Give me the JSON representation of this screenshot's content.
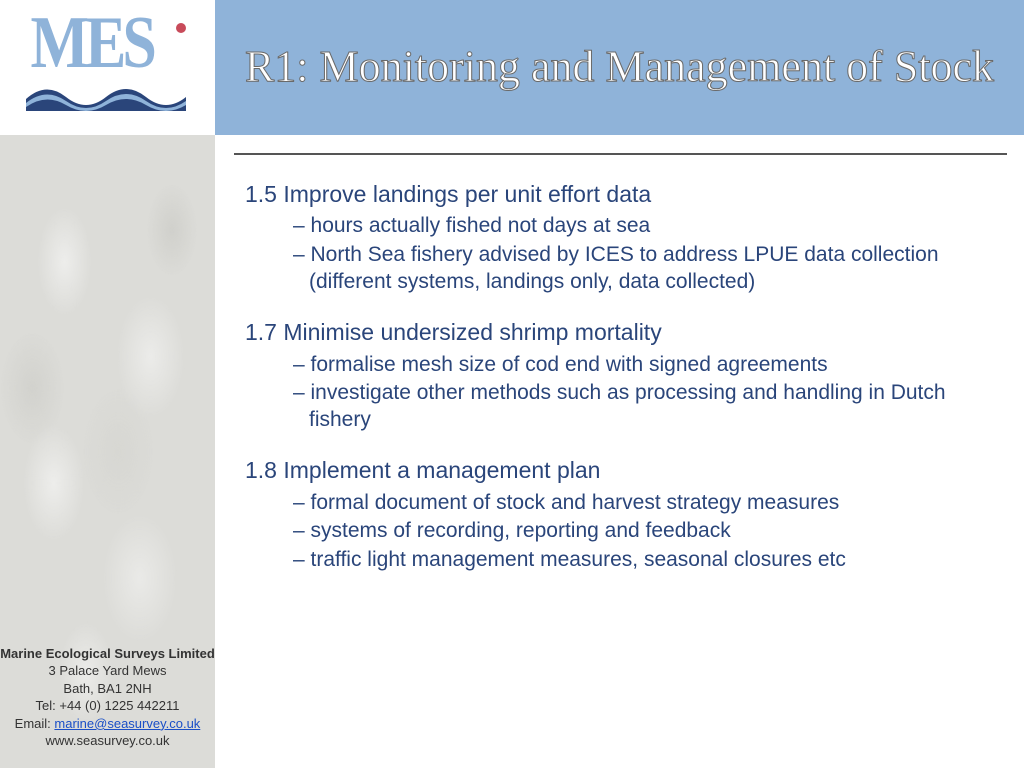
{
  "colors": {
    "header_bg": "#8fb3d9",
    "title_text": "#ffffff",
    "title_stroke": "#6a6a6a",
    "body_text": "#2a457a",
    "link": "#1a4fc7",
    "logo_text": "#8fb3d9",
    "logo_dot": "#c84b5a",
    "logo_wave": "#2a457a",
    "hr": "#555555",
    "shrimp_bg": "#dcdcd8"
  },
  "logo": {
    "text": "MES"
  },
  "title": "R1: Monitoring and Management of Stock",
  "sections": [
    {
      "heading": "1.5 Improve landings per unit effort data",
      "bullets": [
        "hours actually fished not days at sea",
        "North Sea fishery advised by ICES to address LPUE data collection (different systems, landings only, data collected)"
      ]
    },
    {
      "heading": "1.7 Minimise undersized shrimp mortality",
      "bullets": [
        "formalise mesh size of cod end with signed agreements",
        " investigate other methods such as processing and handling in Dutch fishery"
      ]
    },
    {
      "heading": "1.8 Implement a management plan",
      "bullets": [
        "formal document of stock and harvest strategy measures",
        "systems of recording, reporting and feedback",
        "traffic light management measures, seasonal closures etc"
      ]
    }
  ],
  "contact": {
    "name": "Marine Ecological Surveys Limited",
    "address1": "3 Palace Yard Mews",
    "address2": "Bath, BA1 2NH",
    "tel_label": "Tel: ",
    "tel": "+44 (0) 1225 442211",
    "email_label": "Email: ",
    "email": "marine@seasurvey.co.uk",
    "web": "www.seasurvey.co.uk"
  }
}
